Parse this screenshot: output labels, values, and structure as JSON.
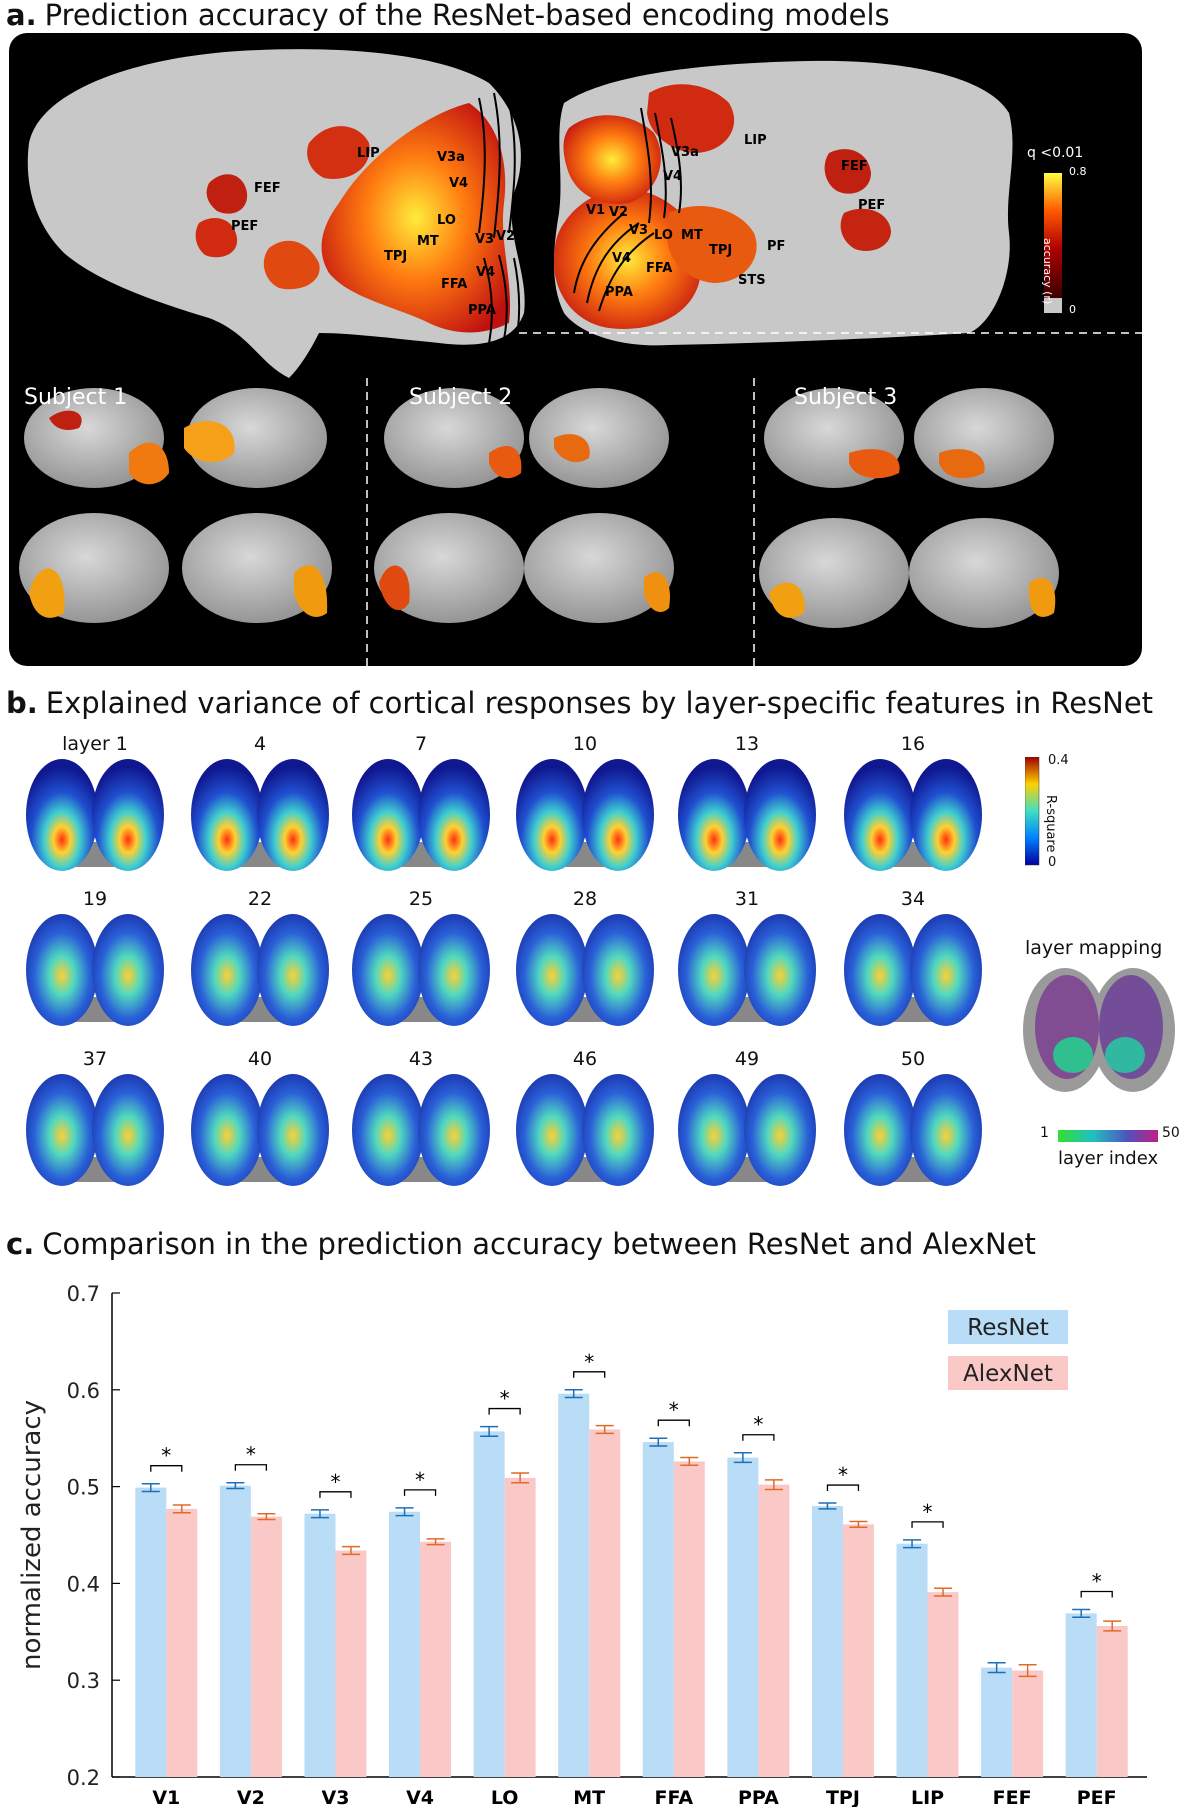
{
  "panel_a": {
    "label": "a.",
    "title": "Prediction accuracy of the ResNet-based encoding models",
    "threshold_label": "q <0.01",
    "colorbar_title": "accuracy (r)",
    "colorbar_max": "0.8",
    "colorbar_min": "0",
    "subjects": [
      "Subject 1",
      "Subject 2",
      "Subject 3"
    ],
    "left_hemisphere_rois": [
      "LIP",
      "V3a",
      "V4",
      "FEF",
      "PEF",
      "LO",
      "MT",
      "TPJ",
      "V3",
      "V2",
      "V1",
      "V4",
      "FFA",
      "PPA"
    ],
    "right_hemisphere_rois": [
      "V3a",
      "V4",
      "LIP",
      "FEF",
      "PEF",
      "V1",
      "V2",
      "V3",
      "LO",
      "MT",
      "TPJ",
      "PF",
      "V4",
      "FFA",
      "STS",
      "PPA"
    ],
    "colors": {
      "hot_low": "#8b0000",
      "hot_mid": "#e03a10",
      "hot_high": "#ffe020",
      "cortex": "#c8c8c8"
    }
  },
  "panel_b": {
    "label": "b.",
    "title": "Explained variance of cortical responses by layer-specific features in ResNet",
    "layer_labels": [
      "layer 1",
      "4",
      "7",
      "10",
      "13",
      "16",
      "19",
      "22",
      "25",
      "28",
      "31",
      "34",
      "37",
      "40",
      "43",
      "46",
      "49",
      "50"
    ],
    "colorbar_title": "R-square",
    "colorbar_max": "0.4",
    "colorbar_min": "0",
    "mapping_title": "layer mapping",
    "mapping_axis": "layer index",
    "mapping_min": "1",
    "mapping_max": "50"
  },
  "panel_c": {
    "label": "c.",
    "title": "Comparison in the prediction accuracy between ResNet and AlexNet",
    "significance_mark": "*"
  },
  "chart_data": {
    "type": "bar",
    "ylabel": "normalized accuracy",
    "ylim": [
      0.2,
      0.7
    ],
    "yticks": [
      "0.2",
      "0.3",
      "0.4",
      "0.5",
      "0.6",
      "0.7"
    ],
    "categories": [
      "V1",
      "V2",
      "V3",
      "V4",
      "LO",
      "MT",
      "FFA",
      "PPA",
      "TPJ",
      "LIP",
      "FEF",
      "PEF"
    ],
    "series": [
      {
        "name": "ResNet",
        "color": "#b9dcf7",
        "error_color": "#1f6fb8",
        "values": [
          0.499,
          0.501,
          0.472,
          0.474,
          0.557,
          0.596,
          0.546,
          0.53,
          0.48,
          0.441,
          0.313,
          0.369
        ],
        "errors": [
          0.004,
          0.003,
          0.004,
          0.004,
          0.005,
          0.004,
          0.004,
          0.005,
          0.003,
          0.004,
          0.005,
          0.004
        ]
      },
      {
        "name": "AlexNet",
        "color": "#fbc8c8",
        "error_color": "#e06a2a",
        "values": [
          0.477,
          0.469,
          0.434,
          0.443,
          0.509,
          0.559,
          0.526,
          0.502,
          0.461,
          0.391,
          0.31,
          0.356
        ],
        "errors": [
          0.004,
          0.003,
          0.004,
          0.003,
          0.005,
          0.004,
          0.004,
          0.005,
          0.003,
          0.004,
          0.006,
          0.005
        ]
      }
    ],
    "significant": [
      true,
      true,
      true,
      true,
      true,
      true,
      true,
      true,
      true,
      true,
      false,
      true
    ],
    "legend_position": "top-right",
    "grid": false
  }
}
